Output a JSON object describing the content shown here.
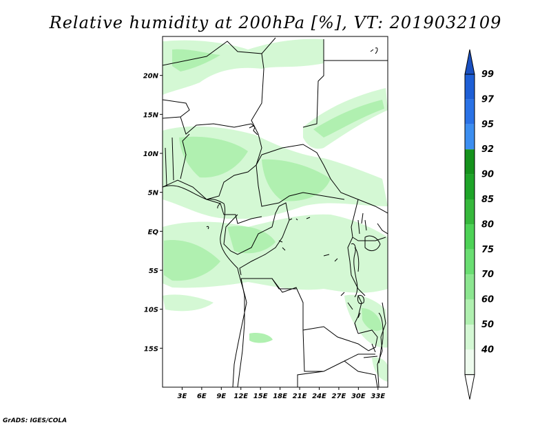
{
  "title": "Relative humidity at 200hPa [%], VT: 2019032109",
  "credit": "GrADS: IGES/COLA",
  "map": {
    "lon_range": [
      0,
      34.5
    ],
    "lat_range": [
      -20,
      25
    ],
    "lat_ticks": [
      {
        "value": 20,
        "label": "20N"
      },
      {
        "value": 15,
        "label": "15N"
      },
      {
        "value": 10,
        "label": "10N"
      },
      {
        "value": 5,
        "label": "5N"
      },
      {
        "value": 0,
        "label": "EQ"
      },
      {
        "value": -5,
        "label": "5S"
      },
      {
        "value": -10,
        "label": "10S"
      },
      {
        "value": -15,
        "label": "15S"
      }
    ],
    "lon_ticks": [
      {
        "value": 3,
        "label": "3E"
      },
      {
        "value": 6,
        "label": "6E"
      },
      {
        "value": 9,
        "label": "9E"
      },
      {
        "value": 12,
        "label": "12E"
      },
      {
        "value": 15,
        "label": "15E"
      },
      {
        "value": 18,
        "label": "18E"
      },
      {
        "value": 21,
        "label": "21E"
      },
      {
        "value": 24,
        "label": "24E"
      },
      {
        "value": 27,
        "label": "27E"
      },
      {
        "value": 30,
        "label": "30E"
      },
      {
        "value": 33,
        "label": "33E"
      }
    ]
  },
  "colorbar": {
    "levels": [
      {
        "label": "99",
        "color": "#1e5fd6"
      },
      {
        "label": "97",
        "color": "#2a72e6"
      },
      {
        "label": "95",
        "color": "#3c8ef0"
      },
      {
        "label": "92",
        "color": "#15921c"
      },
      {
        "label": "90",
        "color": "#1ea428"
      },
      {
        "label": "85",
        "color": "#36b83c"
      },
      {
        "label": "80",
        "color": "#4dd256"
      },
      {
        "label": "75",
        "color": "#6ade72"
      },
      {
        "label": "70",
        "color": "#8ce690"
      },
      {
        "label": "60",
        "color": "#b0f0b0"
      },
      {
        "label": "50",
        "color": "#d4f8d4"
      },
      {
        "label": "40",
        "color": "#eefbee"
      }
    ],
    "top_arrow_color": "#1a50c0",
    "bottom_arrow_color": "#ffffff"
  },
  "colors": {
    "land_humid_light": "#d4f8d4",
    "land_humid_mid": "#b0f0b0",
    "land_humid_strong": "#8ce690",
    "boundary": "#000000"
  }
}
